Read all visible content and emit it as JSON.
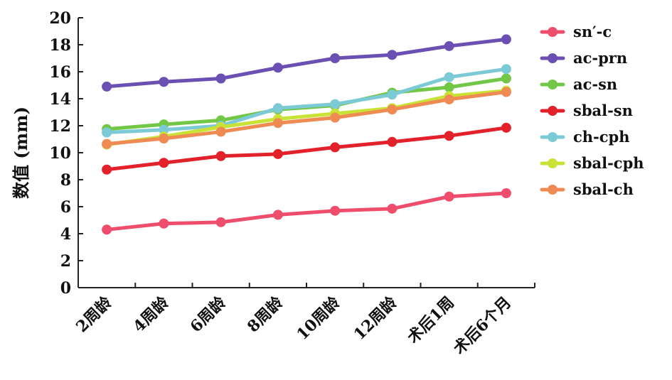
{
  "chart_data": {
    "type": "line",
    "ylabel": "数值 (mm)",
    "ylim": [
      0,
      20
    ],
    "yticks": [
      "0",
      "2",
      "4",
      "6",
      "8",
      "10",
      "12",
      "14",
      "16",
      "18",
      "20"
    ],
    "categories": [
      "2周龄",
      "4周龄",
      "6周龄",
      "8周龄",
      "10周龄",
      "12周龄",
      "术后1周",
      "术后6个月"
    ],
    "legend_position": "right",
    "grid": false,
    "series": [
      {
        "name": "sn′-c",
        "color": "#ee4d6c",
        "values": [
          4.3,
          4.75,
          4.85,
          5.4,
          5.7,
          5.85,
          6.75,
          7.0
        ]
      },
      {
        "name": "ac-prn",
        "color": "#6b4fb2",
        "values": [
          14.9,
          15.25,
          15.5,
          16.3,
          17.0,
          17.25,
          17.9,
          18.4
        ]
      },
      {
        "name": "ac-sn",
        "color": "#72c846",
        "values": [
          11.75,
          12.1,
          12.4,
          13.2,
          13.5,
          14.45,
          14.85,
          15.5
        ]
      },
      {
        "name": "sbal-sn",
        "color": "#e3212a",
        "values": [
          8.75,
          9.25,
          9.75,
          9.9,
          10.4,
          10.8,
          11.25,
          11.85
        ]
      },
      {
        "name": "ch-cph",
        "color": "#7ccad6",
        "values": [
          11.5,
          11.7,
          12.0,
          13.3,
          13.6,
          14.3,
          15.6,
          16.2
        ]
      },
      {
        "name": "sbal-cph",
        "color": "#c9e236",
        "values": [
          10.6,
          11.2,
          11.9,
          12.5,
          12.9,
          13.3,
          14.2,
          14.6
        ]
      },
      {
        "name": "sbal-ch",
        "color": "#ee8a52",
        "values": [
          10.65,
          11.05,
          11.55,
          12.2,
          12.6,
          13.2,
          13.95,
          14.5
        ]
      }
    ]
  }
}
